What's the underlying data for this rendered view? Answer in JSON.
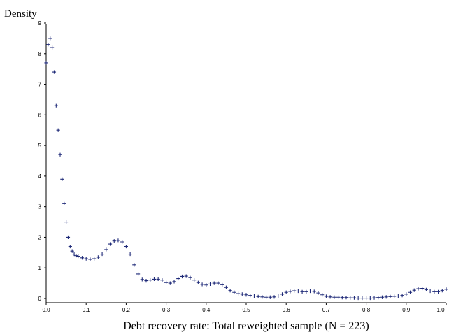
{
  "chart_data": {
    "type": "scatter",
    "title": "",
    "ylabel": "Density",
    "xlabel": "Debt recovery rate: Total reweighted sample (N = 223)",
    "xlim": [
      0,
      1.0
    ],
    "ylim": [
      0,
      9
    ],
    "x_tick_labels": [
      "0.0",
      "0.1",
      "0.2",
      "0.3",
      "0.4",
      "0.5",
      "0.6",
      "0.7",
      "0.8",
      "0.9",
      "1.0"
    ],
    "y_tick_labels": [
      "0",
      "1",
      "2",
      "3",
      "4",
      "5",
      "6",
      "7",
      "8",
      "9"
    ],
    "marker": "+",
    "marker_color": "#1f2a78",
    "grid": false,
    "series": [
      {
        "x": [
          0.0,
          0.005,
          0.01,
          0.015,
          0.02,
          0.025,
          0.03,
          0.035,
          0.04,
          0.045,
          0.05,
          0.055,
          0.06,
          0.065,
          0.07,
          0.075,
          0.08,
          0.09,
          0.1,
          0.11,
          0.12,
          0.13,
          0.14,
          0.15,
          0.16,
          0.17,
          0.18,
          0.19,
          0.2,
          0.21,
          0.22,
          0.23,
          0.24,
          0.25,
          0.26,
          0.27,
          0.28,
          0.29,
          0.3,
          0.31,
          0.32,
          0.33,
          0.34,
          0.35,
          0.36,
          0.37,
          0.38,
          0.39,
          0.4,
          0.41,
          0.42,
          0.43,
          0.44,
          0.45,
          0.46,
          0.47,
          0.48,
          0.49,
          0.5,
          0.51,
          0.52,
          0.53,
          0.54,
          0.55,
          0.56,
          0.57,
          0.58,
          0.59,
          0.6,
          0.61,
          0.62,
          0.63,
          0.64,
          0.65,
          0.66,
          0.67,
          0.68,
          0.69,
          0.7,
          0.71,
          0.72,
          0.73,
          0.74,
          0.75,
          0.76,
          0.77,
          0.78,
          0.79,
          0.8,
          0.81,
          0.82,
          0.83,
          0.84,
          0.85,
          0.86,
          0.87,
          0.88,
          0.89,
          0.9,
          0.91,
          0.92,
          0.93,
          0.94,
          0.95,
          0.96,
          0.97,
          0.98,
          0.99,
          1.0
        ],
        "y": [
          7.7,
          8.3,
          8.5,
          8.2,
          7.4,
          6.3,
          5.5,
          4.7,
          3.9,
          3.1,
          2.5,
          2.0,
          1.7,
          1.55,
          1.45,
          1.4,
          1.38,
          1.33,
          1.3,
          1.28,
          1.3,
          1.35,
          1.45,
          1.6,
          1.78,
          1.88,
          1.9,
          1.85,
          1.7,
          1.45,
          1.1,
          0.8,
          0.62,
          0.58,
          0.6,
          0.63,
          0.63,
          0.6,
          0.52,
          0.5,
          0.55,
          0.65,
          0.72,
          0.73,
          0.68,
          0.6,
          0.52,
          0.46,
          0.44,
          0.47,
          0.5,
          0.5,
          0.45,
          0.36,
          0.26,
          0.2,
          0.16,
          0.14,
          0.12,
          0.1,
          0.08,
          0.06,
          0.05,
          0.04,
          0.04,
          0.05,
          0.08,
          0.14,
          0.2,
          0.23,
          0.25,
          0.24,
          0.22,
          0.22,
          0.24,
          0.23,
          0.18,
          0.12,
          0.07,
          0.05,
          0.04,
          0.04,
          0.03,
          0.03,
          0.02,
          0.02,
          0.01,
          0.01,
          0.01,
          0.01,
          0.02,
          0.03,
          0.04,
          0.05,
          0.06,
          0.07,
          0.08,
          0.1,
          0.14,
          0.2,
          0.27,
          0.32,
          0.33,
          0.29,
          0.24,
          0.22,
          0.22,
          0.26,
          0.3
        ]
      }
    ]
  }
}
